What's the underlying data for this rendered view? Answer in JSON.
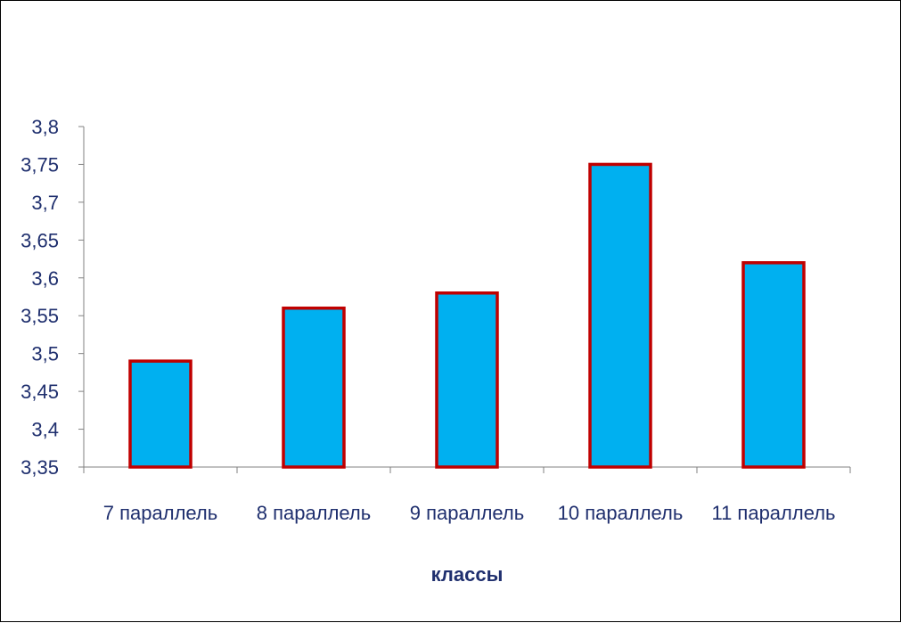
{
  "chart_data": {
    "type": "bar",
    "title": "",
    "xlabel": "классы",
    "ylabel": "",
    "categories": [
      "7 параллель",
      "8 параллель",
      "9 параллель",
      "10 параллель",
      "11 параллель"
    ],
    "values": [
      3.49,
      3.56,
      3.58,
      3.75,
      3.62
    ],
    "ylim": [
      3.35,
      3.8
    ],
    "yticks": [
      3.35,
      3.4,
      3.45,
      3.5,
      3.55,
      3.6,
      3.65,
      3.7,
      3.75,
      3.8
    ],
    "ytick_labels": [
      "3,35",
      "3,4",
      "3,45",
      "3,5",
      "3,55",
      "3,6",
      "3,65",
      "3,7",
      "3,75",
      "3,8"
    ],
    "grid": false,
    "legend": "none",
    "colors": {
      "bar_fill": "#00b0f0",
      "bar_border": "#c00000",
      "text": "#1f2f6e",
      "axis": "#808080"
    }
  }
}
